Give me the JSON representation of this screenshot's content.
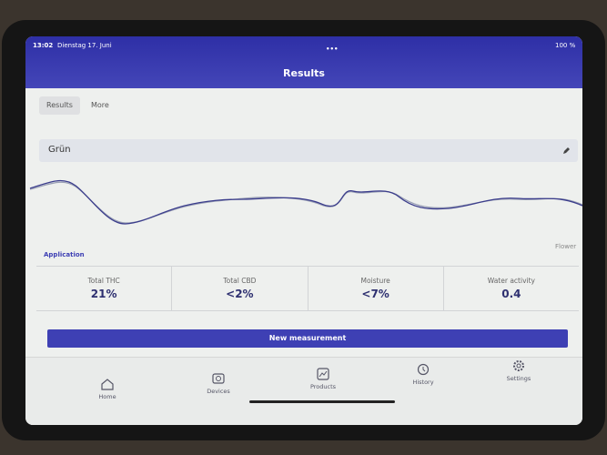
{
  "status_bar": {
    "time": "13:02",
    "date": "Dienstag 17. Juni",
    "battery": "100 %"
  },
  "header": {
    "title": "Results"
  },
  "tabs": [
    "Results",
    "More"
  ],
  "sample": {
    "name": "Grün",
    "left_label": "Application",
    "right_label": "Flower"
  },
  "metrics": [
    {
      "label": "Total THC",
      "value": "21%"
    },
    {
      "label": "Total CBD",
      "value": "<2%"
    },
    {
      "label": "Moisture",
      "value": "<7%"
    },
    {
      "label": "Water activity",
      "value": "0.4"
    }
  ],
  "button": "New measurement",
  "nav": [
    "Home",
    "Devices",
    "Products",
    "History",
    "Settings"
  ]
}
